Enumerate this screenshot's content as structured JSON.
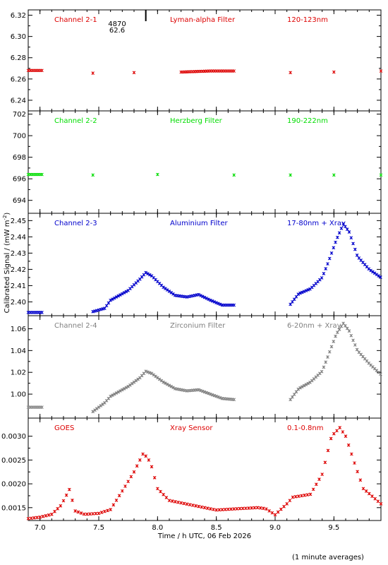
{
  "x_axis": {
    "label": "Time / h UTC, 06 Feb 2026",
    "range": [
      6.9,
      9.9
    ],
    "ticks": [
      "7.0",
      "7.5",
      "8.0",
      "8.5",
      "9.0",
      "9.5"
    ]
  },
  "y_axis_label": "Calibrated Signal / (mW m",
  "y_axis_label_sup": "-2",
  "y_axis_label_end": ")",
  "footnote": "(1 minute averages)",
  "top_annotation": {
    "line1": "4870",
    "line2": "62.6",
    "marker_x": 7.9
  },
  "panels": [
    {
      "name": "Channel 2-1",
      "filter": "Lyman-alpha Filter",
      "band": "120-123nm",
      "color": "#dd0000",
      "ylim": [
        6.23,
        6.325
      ],
      "yticks": [
        "6.24",
        "6.26",
        "6.28",
        "6.30",
        "6.32"
      ]
    },
    {
      "name": "Channel 2-2",
      "filter": "Herzberg Filter",
      "band": "190-222nm",
      "color": "#00dd00",
      "ylim": [
        692.8,
        702.3
      ],
      "yticks": [
        "694",
        "696",
        "698",
        "700",
        "702"
      ]
    },
    {
      "name": "Channel 2-3",
      "filter": "Aluminium Filter",
      "band": "17-80nm + Xray",
      "color": "#0000cc",
      "ylim": [
        2.3915,
        2.4545
      ],
      "yticks": [
        "2.40",
        "2.41",
        "2.42",
        "2.43",
        "2.44",
        "2.45"
      ]
    },
    {
      "name": "Channel 2-4",
      "filter": "Zirconium Filter",
      "band": "6-20nm + Xray",
      "color": "#808080",
      "ylim": [
        0.978,
        1.072
      ],
      "yticks": [
        "1.00",
        "1.02",
        "1.04",
        "1.06"
      ]
    },
    {
      "name": "GOES",
      "filter": "Xray Sensor",
      "band": "0.1-0.8nm",
      "color": "#dd0000",
      "ylim": [
        0.00123,
        0.00338
      ],
      "yticks": [
        "0.0015",
        "0.0020",
        "0.0025",
        "0.0030"
      ]
    }
  ],
  "chart_data": [
    {
      "type": "scatter",
      "title": "Channel 2-1 Lyman-alpha Filter 120-123nm",
      "xlim": [
        6.9,
        9.9
      ],
      "ylim": [
        6.23,
        6.325
      ],
      "x": [
        6.9,
        7.02,
        7.45,
        7.8,
        8.2,
        8.45,
        8.65,
        9.13,
        9.5,
        9.9
      ],
      "y": [
        6.268,
        6.268,
        6.2655,
        6.266,
        6.2665,
        6.2675,
        6.2675,
        6.266,
        6.2665,
        6.2675
      ]
    },
    {
      "type": "scatter",
      "title": "Channel 2-2 Herzberg Filter 190-222nm",
      "xlim": [
        6.9,
        9.9
      ],
      "ylim": [
        692.8,
        702.3
      ],
      "x": [
        6.9,
        7.02,
        7.45,
        8.0,
        8.65,
        9.13,
        9.5,
        9.9
      ],
      "y": [
        696.4,
        696.4,
        696.35,
        696.4,
        696.35,
        696.35,
        696.35,
        696.35
      ]
    },
    {
      "type": "scatter",
      "title": "Channel 2-3 Aluminium Filter 17-80nm + Xray",
      "xlim": [
        6.9,
        9.9
      ],
      "ylim": [
        2.3915,
        2.4545
      ],
      "x": [
        6.9,
        7.02,
        7.45,
        7.55,
        7.6,
        7.65,
        7.75,
        7.85,
        7.9,
        7.95,
        8.05,
        8.15,
        8.25,
        8.35,
        8.45,
        8.55,
        8.65,
        9.13,
        9.2,
        9.3,
        9.4,
        9.45,
        9.52,
        9.58,
        9.63,
        9.7,
        9.8,
        9.9
      ],
      "y": [
        2.3935,
        2.3935,
        2.394,
        2.396,
        2.401,
        2.403,
        2.407,
        2.414,
        2.418,
        2.416,
        2.409,
        2.404,
        2.403,
        2.4045,
        2.401,
        2.398,
        2.398,
        2.3985,
        2.405,
        2.408,
        2.415,
        2.424,
        2.438,
        2.448,
        2.443,
        2.428,
        2.42,
        2.415
      ]
    },
    {
      "type": "scatter",
      "title": "Channel 2-4 Zirconium Filter 6-20nm + Xray",
      "xlim": [
        6.9,
        9.9
      ],
      "ylim": [
        0.978,
        1.072
      ],
      "x": [
        6.9,
        7.02,
        7.45,
        7.55,
        7.6,
        7.65,
        7.75,
        7.85,
        7.9,
        7.95,
        8.05,
        8.15,
        8.25,
        8.35,
        8.45,
        8.55,
        8.65,
        9.13,
        9.2,
        9.3,
        9.4,
        9.45,
        9.52,
        9.58,
        9.63,
        9.7,
        9.8,
        9.9
      ],
      "y": [
        0.988,
        0.988,
        0.984,
        0.992,
        0.998,
        1.001,
        1.007,
        1.015,
        1.021,
        1.019,
        1.011,
        1.005,
        1.003,
        1.004,
        1.0,
        0.996,
        0.995,
        0.995,
        1.005,
        1.011,
        1.021,
        1.035,
        1.055,
        1.065,
        1.058,
        1.04,
        1.028,
        1.018
      ]
    },
    {
      "type": "scatter",
      "title": "GOES Xray Sensor 0.1-0.8nm",
      "xlim": [
        6.9,
        9.9
      ],
      "ylim": [
        0.00123,
        0.00338
      ],
      "x": [
        6.9,
        7.0,
        7.1,
        7.18,
        7.25,
        7.3,
        7.38,
        7.5,
        7.6,
        7.7,
        7.8,
        7.88,
        7.94,
        8.0,
        8.1,
        8.3,
        8.5,
        8.7,
        8.85,
        8.92,
        9.0,
        9.1,
        9.15,
        9.3,
        9.4,
        9.48,
        9.55,
        9.6,
        9.68,
        9.75,
        9.9
      ],
      "y": [
        0.00127,
        0.0013,
        0.00136,
        0.00155,
        0.00188,
        0.00143,
        0.00136,
        0.00138,
        0.00146,
        0.00185,
        0.00225,
        0.00265,
        0.00245,
        0.0019,
        0.00165,
        0.00155,
        0.00145,
        0.00148,
        0.0015,
        0.00148,
        0.00135,
        0.00158,
        0.00172,
        0.00178,
        0.0022,
        0.003,
        0.00318,
        0.003,
        0.0024,
        0.0019,
        0.00158
      ]
    }
  ]
}
